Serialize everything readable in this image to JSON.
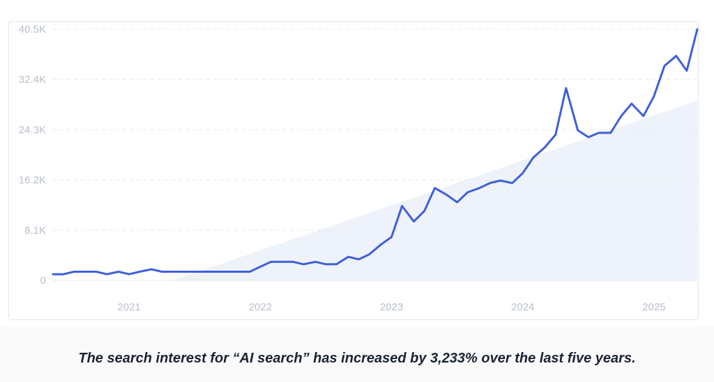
{
  "caption": "The search interest for “AI search” has increased by 3,233% over the last five years.",
  "colors": {
    "line": "#3f5fdb",
    "trend_fill": "#eef3fb",
    "grid": "#e3e8ef",
    "tick": "#b8bec9",
    "border": "#dfe7f3"
  },
  "chart_data": {
    "type": "line",
    "title": "",
    "xlabel": "",
    "ylabel": "",
    "ylim": [
      0,
      40500
    ],
    "y_ticks": [
      "0",
      "8.1K",
      "16.2K",
      "24.3K",
      "32.4K",
      "40.5K"
    ],
    "y_tick_values": [
      0,
      8100,
      16200,
      24300,
      32400,
      40500
    ],
    "x_ticks": [
      "2021",
      "2022",
      "2023",
      "2024",
      "2025"
    ],
    "x_tick_values": [
      2021,
      2022,
      2023,
      2024,
      2025
    ],
    "grid": "horizontal dashed",
    "series": [
      {
        "x": [
          2020.42,
          2020.5,
          2020.58,
          2020.67,
          2020.75,
          2020.83,
          2020.92,
          2021.0,
          2021.08,
          2021.17,
          2021.25,
          2021.33,
          2021.42,
          2021.5,
          2021.58,
          2021.67,
          2021.75,
          2021.83,
          2021.92,
          2022.0,
          2022.08,
          2022.17,
          2022.25,
          2022.33,
          2022.42,
          2022.5,
          2022.58,
          2022.67,
          2022.75,
          2022.83,
          2022.92,
          2023.0,
          2023.08,
          2023.17,
          2023.25,
          2023.33,
          2023.42,
          2023.5,
          2023.58,
          2023.67,
          2023.75,
          2023.83,
          2023.92,
          2024.0,
          2024.08,
          2024.17,
          2024.25,
          2024.33,
          2024.42,
          2024.5,
          2024.58,
          2024.67,
          2024.75,
          2024.83,
          2024.92,
          2025.0,
          2025.08,
          2025.17,
          2025.25,
          2025.33
        ],
        "values": [
          1000,
          1000,
          1400,
          1400,
          1400,
          1000,
          1400,
          1000,
          1400,
          1800,
          1400,
          1400,
          1400,
          1400,
          1400,
          1400,
          1400,
          1400,
          1400,
          2200,
          3000,
          3000,
          3000,
          2600,
          3000,
          2600,
          2600,
          3800,
          3400,
          4200,
          5800,
          7000,
          12000,
          9500,
          11200,
          14900,
          13800,
          12600,
          14200,
          14900,
          15700,
          16100,
          15700,
          17300,
          19800,
          21500,
          23500,
          31000,
          24200,
          23100,
          23800,
          23800,
          26500,
          28500,
          26500,
          29700,
          34600,
          36200,
          33800,
          40500
        ]
      }
    ],
    "trend": {
      "x": [
        2021.33,
        2025.33
      ],
      "y": [
        0,
        29000
      ]
    }
  }
}
